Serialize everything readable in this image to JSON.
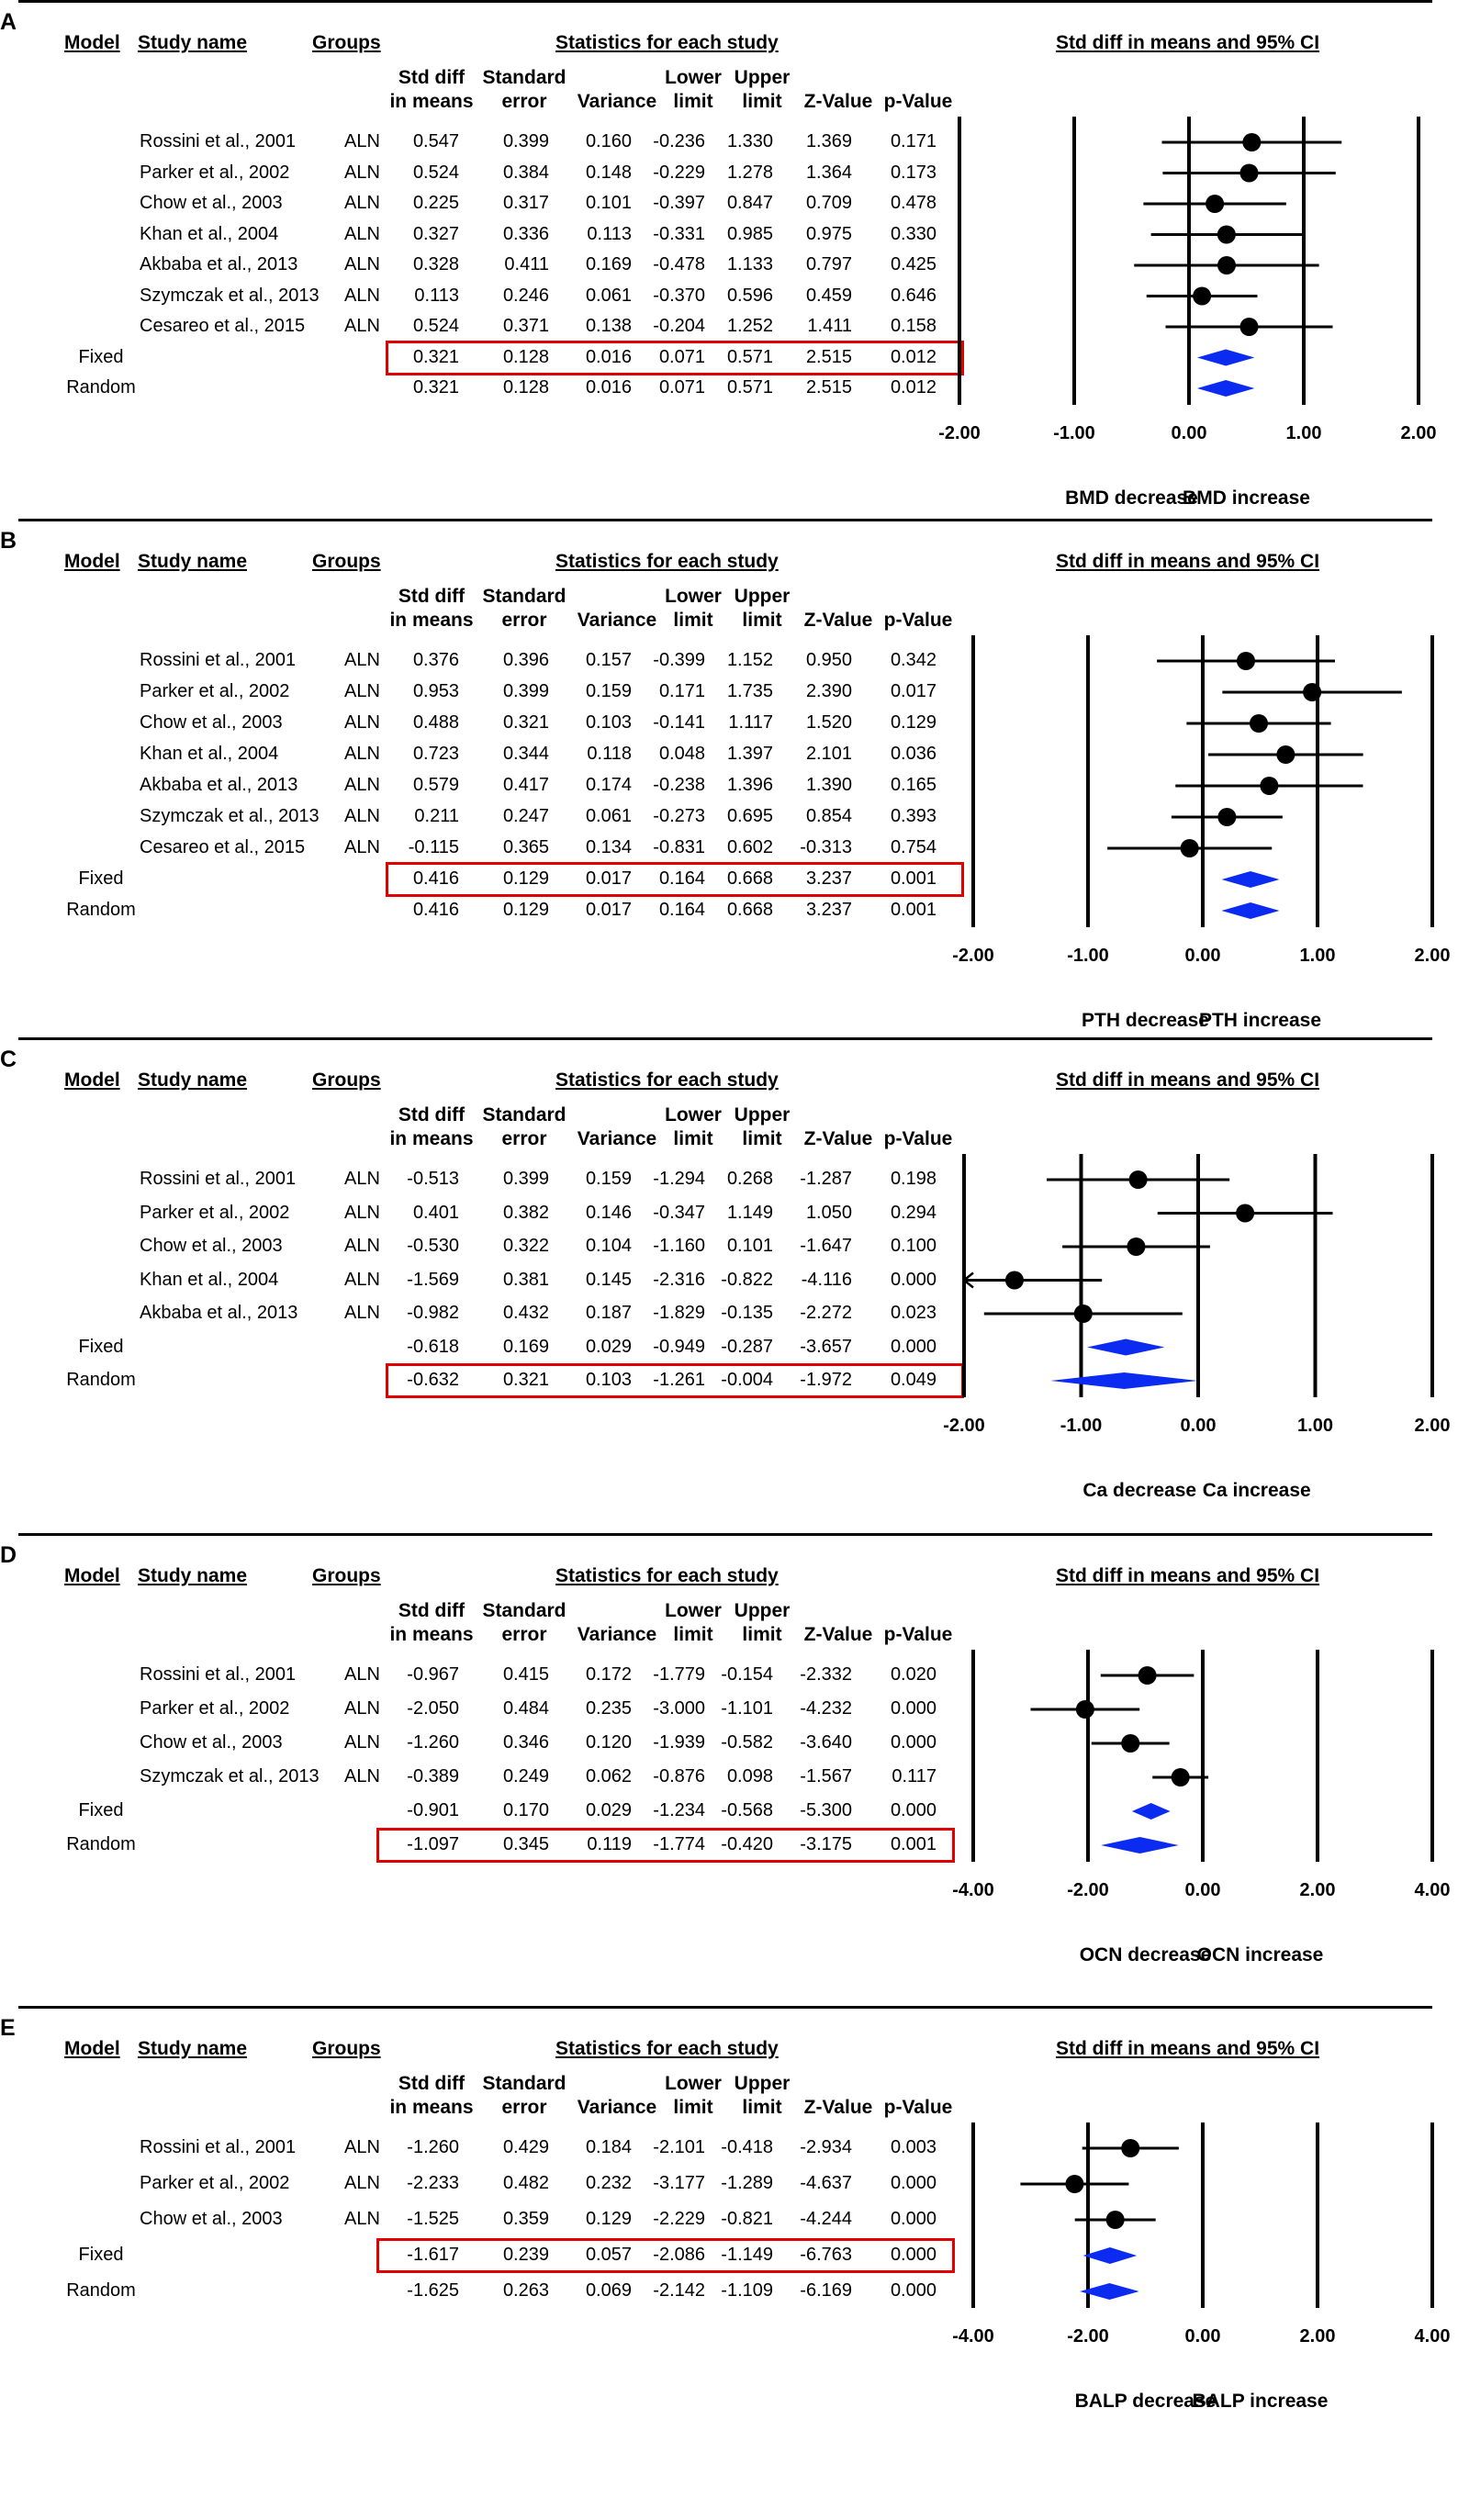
{
  "column_headers": {
    "model": "Model",
    "study_name": "Study name",
    "groups": "Groups",
    "stats_title": "Statistics for each study",
    "plot_title": "Std diff in means and 95% CI",
    "std_diff_1": "Std diff",
    "std_diff_2": "in means",
    "se_1": "Standard",
    "se_2": "error",
    "variance": "Variance",
    "lower_1": "Lower",
    "lower_2": "limit",
    "upper_1": "Upper",
    "upper_2": "limit",
    "z": "Z-Value",
    "p": "p-Value"
  },
  "colors": {
    "highlight": "#e00000",
    "diamond": "#0b2bf0",
    "marker": "#000000"
  },
  "chart_data": [
    {
      "type": "forest",
      "panel": "A",
      "xlim": [
        -2,
        2
      ],
      "ticks": [
        "-2.00",
        "-1.00",
        "0.00",
        "1.00",
        "2.00"
      ],
      "left_label": "BMD decrease",
      "right_label": "BMD increase",
      "highlight": "Fixed",
      "rows": [
        {
          "model": "",
          "study": "Rossini et al., 2001",
          "group": "ALN",
          "est": "0.547",
          "se": "0.399",
          "var": "0.160",
          "lower": "-0.236",
          "upper": "1.330",
          "z": "1.369",
          "p": "0.171"
        },
        {
          "model": "",
          "study": "Parker et al., 2002",
          "group": "ALN",
          "est": "0.524",
          "se": "0.384",
          "var": "0.148",
          "lower": "-0.229",
          "upper": "1.278",
          "z": "1.364",
          "p": "0.173"
        },
        {
          "model": "",
          "study": "Chow et al., 2003",
          "group": "ALN",
          "est": "0.225",
          "se": "0.317",
          "var": "0.101",
          "lower": "-0.397",
          "upper": "0.847",
          "z": "0.709",
          "p": "0.478"
        },
        {
          "model": "",
          "study": "Khan et al., 2004",
          "group": "ALN",
          "est": "0.327",
          "se": "0.336",
          "var": "0.113",
          "lower": "-0.331",
          "upper": "0.985",
          "z": "0.975",
          "p": "0.330"
        },
        {
          "model": "",
          "study": "Akbaba et al., 2013",
          "group": "ALN",
          "est": "0.328",
          "se": "0.411",
          "var": "0.169",
          "lower": "-0.478",
          "upper": "1.133",
          "z": "0.797",
          "p": "0.425"
        },
        {
          "model": "",
          "study": "Szymczak et al., 2013",
          "group": "ALN",
          "est": "0.113",
          "se": "0.246",
          "var": "0.061",
          "lower": "-0.370",
          "upper": "0.596",
          "z": "0.459",
          "p": "0.646"
        },
        {
          "model": "",
          "study": "Cesareo et al., 2015",
          "group": "ALN",
          "est": "0.524",
          "se": "0.371",
          "var": "0.138",
          "lower": "-0.204",
          "upper": "1.252",
          "z": "1.411",
          "p": "0.158"
        },
        {
          "model": "Fixed",
          "study": "",
          "group": "",
          "est": "0.321",
          "se": "0.128",
          "var": "0.016",
          "lower": "0.071",
          "upper": "0.571",
          "z": "2.515",
          "p": "0.012"
        },
        {
          "model": "Random",
          "study": "",
          "group": "",
          "est": "0.321",
          "se": "0.128",
          "var": "0.016",
          "lower": "0.071",
          "upper": "0.571",
          "z": "2.515",
          "p": "0.012"
        }
      ]
    },
    {
      "type": "forest",
      "panel": "B",
      "xlim": [
        -2,
        2
      ],
      "ticks": [
        "-2.00",
        "-1.00",
        "0.00",
        "1.00",
        "2.00"
      ],
      "left_label": "PTH decrease",
      "right_label": "PTH increase",
      "highlight": "Fixed",
      "rows": [
        {
          "model": "",
          "study": "Rossini et al., 2001",
          "group": "ALN",
          "est": "0.376",
          "se": "0.396",
          "var": "0.157",
          "lower": "-0.399",
          "upper": "1.152",
          "z": "0.950",
          "p": "0.342"
        },
        {
          "model": "",
          "study": "Parker et al., 2002",
          "group": "ALN",
          "est": "0.953",
          "se": "0.399",
          "var": "0.159",
          "lower": "0.171",
          "upper": "1.735",
          "z": "2.390",
          "p": "0.017"
        },
        {
          "model": "",
          "study": "Chow et al., 2003",
          "group": "ALN",
          "est": "0.488",
          "se": "0.321",
          "var": "0.103",
          "lower": "-0.141",
          "upper": "1.117",
          "z": "1.520",
          "p": "0.129"
        },
        {
          "model": "",
          "study": "Khan et al., 2004",
          "group": "ALN",
          "est": "0.723",
          "se": "0.344",
          "var": "0.118",
          "lower": "0.048",
          "upper": "1.397",
          "z": "2.101",
          "p": "0.036"
        },
        {
          "model": "",
          "study": "Akbaba et al., 2013",
          "group": "ALN",
          "est": "0.579",
          "se": "0.417",
          "var": "0.174",
          "lower": "-0.238",
          "upper": "1.396",
          "z": "1.390",
          "p": "0.165"
        },
        {
          "model": "",
          "study": "Szymczak et al., 2013",
          "group": "ALN",
          "est": "0.211",
          "se": "0.247",
          "var": "0.061",
          "lower": "-0.273",
          "upper": "0.695",
          "z": "0.854",
          "p": "0.393"
        },
        {
          "model": "",
          "study": "Cesareo et al., 2015",
          "group": "ALN",
          "est": "-0.115",
          "se": "0.365",
          "var": "0.134",
          "lower": "-0.831",
          "upper": "0.602",
          "z": "-0.313",
          "p": "0.754"
        },
        {
          "model": "Fixed",
          "study": "",
          "group": "",
          "est": "0.416",
          "se": "0.129",
          "var": "0.017",
          "lower": "0.164",
          "upper": "0.668",
          "z": "3.237",
          "p": "0.001"
        },
        {
          "model": "Random",
          "study": "",
          "group": "",
          "est": "0.416",
          "se": "0.129",
          "var": "0.017",
          "lower": "0.164",
          "upper": "0.668",
          "z": "3.237",
          "p": "0.001"
        }
      ]
    },
    {
      "type": "forest",
      "panel": "C",
      "xlim": [
        -2,
        2
      ],
      "ticks": [
        "-2.00",
        "-1.00",
        "0.00",
        "1.00",
        "2.00"
      ],
      "left_label": "Ca decrease",
      "right_label": "Ca increase",
      "highlight": "Random",
      "rows": [
        {
          "model": "",
          "study": "Rossini et al., 2001",
          "group": "ALN",
          "est": "-0.513",
          "se": "0.399",
          "var": "0.159",
          "lower": "-1.294",
          "upper": "0.268",
          "z": "-1.287",
          "p": "0.198"
        },
        {
          "model": "",
          "study": "Parker et al., 2002",
          "group": "ALN",
          "est": "0.401",
          "se": "0.382",
          "var": "0.146",
          "lower": "-0.347",
          "upper": "1.149",
          "z": "1.050",
          "p": "0.294"
        },
        {
          "model": "",
          "study": "Chow et al., 2003",
          "group": "ALN",
          "est": "-0.530",
          "se": "0.322",
          "var": "0.104",
          "lower": "-1.160",
          "upper": "0.101",
          "z": "-1.647",
          "p": "0.100"
        },
        {
          "model": "",
          "study": "Khan et al., 2004",
          "group": "ALN",
          "est": "-1.569",
          "se": "0.381",
          "var": "0.145",
          "lower": "-2.316",
          "upper": "-0.822",
          "z": "-4.116",
          "p": "0.000"
        },
        {
          "model": "",
          "study": "Akbaba et al., 2013",
          "group": "ALN",
          "est": "-0.982",
          "se": "0.432",
          "var": "0.187",
          "lower": "-1.829",
          "upper": "-0.135",
          "z": "-2.272",
          "p": "0.023"
        },
        {
          "model": "Fixed",
          "study": "",
          "group": "",
          "est": "-0.618",
          "se": "0.169",
          "var": "0.029",
          "lower": "-0.949",
          "upper": "-0.287",
          "z": "-3.657",
          "p": "0.000"
        },
        {
          "model": "Random",
          "study": "",
          "group": "",
          "est": "-0.632",
          "se": "0.321",
          "var": "0.103",
          "lower": "-1.261",
          "upper": "-0.004",
          "z": "-1.972",
          "p": "0.049"
        }
      ]
    },
    {
      "type": "forest",
      "panel": "D",
      "xlim": [
        -4,
        4
      ],
      "ticks": [
        "-4.00",
        "-2.00",
        "0.00",
        "2.00",
        "4.00"
      ],
      "left_label": "OCN decrease",
      "right_label": "OCN increase",
      "highlight": "Random",
      "rows": [
        {
          "model": "",
          "study": "Rossini et al., 2001",
          "group": "ALN",
          "est": "-0.967",
          "se": "0.415",
          "var": "0.172",
          "lower": "-1.779",
          "upper": "-0.154",
          "z": "-2.332",
          "p": "0.020"
        },
        {
          "model": "",
          "study": "Parker et al., 2002",
          "group": "ALN",
          "est": "-2.050",
          "se": "0.484",
          "var": "0.235",
          "lower": "-3.000",
          "upper": "-1.101",
          "z": "-4.232",
          "p": "0.000"
        },
        {
          "model": "",
          "study": "Chow et al., 2003",
          "group": "ALN",
          "est": "-1.260",
          "se": "0.346",
          "var": "0.120",
          "lower": "-1.939",
          "upper": "-0.582",
          "z": "-3.640",
          "p": "0.000"
        },
        {
          "model": "",
          "study": "Szymczak et al., 2013",
          "group": "ALN",
          "est": "-0.389",
          "se": "0.249",
          "var": "0.062",
          "lower": "-0.876",
          "upper": "0.098",
          "z": "-1.567",
          "p": "0.117"
        },
        {
          "model": "Fixed",
          "study": "",
          "group": "",
          "est": "-0.901",
          "se": "0.170",
          "var": "0.029",
          "lower": "-1.234",
          "upper": "-0.568",
          "z": "-5.300",
          "p": "0.000"
        },
        {
          "model": "Random",
          "study": "",
          "group": "",
          "est": "-1.097",
          "se": "0.345",
          "var": "0.119",
          "lower": "-1.774",
          "upper": "-0.420",
          "z": "-3.175",
          "p": "0.001"
        }
      ]
    },
    {
      "type": "forest",
      "panel": "E",
      "xlim": [
        -4,
        4
      ],
      "ticks": [
        "-4.00",
        "-2.00",
        "0.00",
        "2.00",
        "4.00"
      ],
      "left_label": "BALP decrease",
      "right_label": "BALP increase",
      "highlight": "Fixed",
      "rows": [
        {
          "model": "",
          "study": "Rossini et al., 2001",
          "group": "ALN",
          "est": "-1.260",
          "se": "0.429",
          "var": "0.184",
          "lower": "-2.101",
          "upper": "-0.418",
          "z": "-2.934",
          "p": "0.003"
        },
        {
          "model": "",
          "study": "Parker et al., 2002",
          "group": "ALN",
          "est": "-2.233",
          "se": "0.482",
          "var": "0.232",
          "lower": "-3.177",
          "upper": "-1.289",
          "z": "-4.637",
          "p": "0.000"
        },
        {
          "model": "",
          "study": "Chow et al., 2003",
          "group": "ALN",
          "est": "-1.525",
          "se": "0.359",
          "var": "0.129",
          "lower": "-2.229",
          "upper": "-0.821",
          "z": "-4.244",
          "p": "0.000"
        },
        {
          "model": "Fixed",
          "study": "",
          "group": "",
          "est": "-1.617",
          "se": "0.239",
          "var": "0.057",
          "lower": "-2.086",
          "upper": "-1.149",
          "z": "-6.763",
          "p": "0.000"
        },
        {
          "model": "Random",
          "study": "",
          "group": "",
          "est": "-1.625",
          "se": "0.263",
          "var": "0.069",
          "lower": "-2.142",
          "upper": "-1.109",
          "z": "-6.169",
          "p": "0.000"
        }
      ]
    }
  ]
}
